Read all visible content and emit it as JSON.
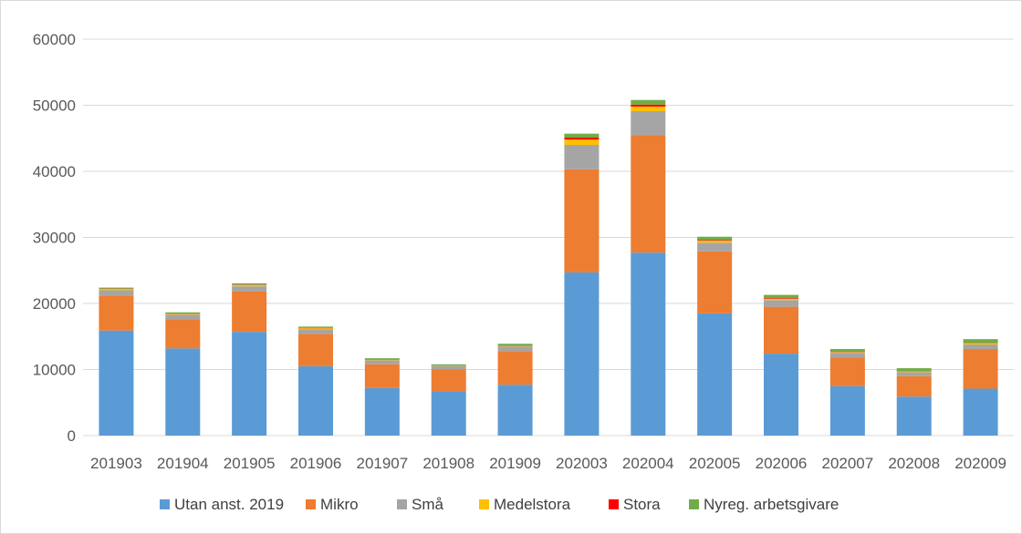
{
  "chart_data": {
    "type": "bar",
    "stacked": true,
    "categories": [
      "201903",
      "201904",
      "201905",
      "201906",
      "201907",
      "201908",
      "201909",
      "202003",
      "202004",
      "202005",
      "202006",
      "202007",
      "202008",
      "202009"
    ],
    "series": [
      {
        "name": "Utan anst. 2019",
        "color": "#5b9bd5",
        "values": [
          15900,
          13200,
          15700,
          10500,
          7200,
          6700,
          7700,
          24700,
          27700,
          18500,
          12400,
          7500,
          5900,
          7100
        ]
      },
      {
        "name": "Mikro",
        "color": "#ed7d31",
        "values": [
          5300,
          4400,
          6100,
          4900,
          3600,
          3300,
          5100,
          15600,
          17800,
          9400,
          7100,
          4300,
          3100,
          6000
        ]
      },
      {
        "name": "Små",
        "color": "#a5a5a5",
        "values": [
          800,
          700,
          800,
          700,
          600,
          500,
          700,
          3700,
          3600,
          1300,
          1000,
          700,
          600,
          700
        ]
      },
      {
        "name": "Medelstora",
        "color": "#ffc000",
        "values": [
          200,
          100,
          200,
          150,
          80,
          50,
          100,
          800,
          700,
          300,
          200,
          100,
          100,
          200
        ]
      },
      {
        "name": "Stora",
        "color": "#ff0000",
        "values": [
          50,
          50,
          50,
          50,
          30,
          30,
          50,
          300,
          300,
          100,
          100,
          50,
          50,
          50
        ]
      },
      {
        "name": "Nyreg. arbetsgivare",
        "color": "#70ad47",
        "values": [
          150,
          200,
          200,
          200,
          200,
          200,
          250,
          600,
          700,
          500,
          500,
          450,
          450,
          550
        ]
      }
    ],
    "ylim": [
      0,
      60000
    ],
    "yticks": [
      "0",
      "10000",
      "20000",
      "30000",
      "40000",
      "50000",
      "60000"
    ],
    "grid": true,
    "legend_position": "bottom"
  }
}
